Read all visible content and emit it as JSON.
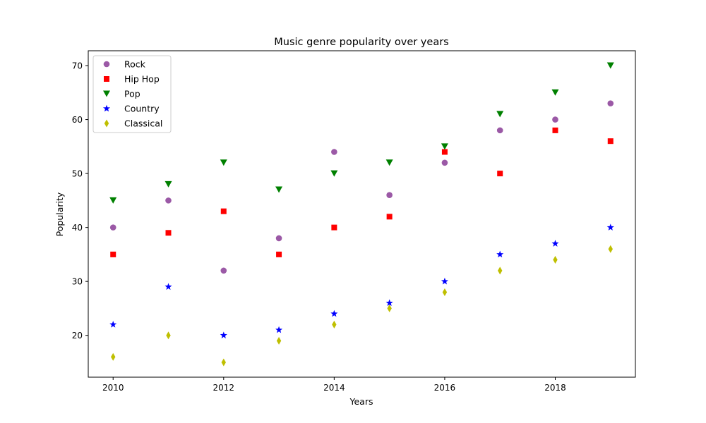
{
  "chart_data": {
    "type": "scatter",
    "title": "Music genre popularity over years",
    "xlabel": "Years",
    "ylabel": "Popularity",
    "x": [
      2010,
      2011,
      2012,
      2013,
      2014,
      2015,
      2016,
      2017,
      2018,
      2019
    ],
    "xlim": [
      2009.55,
      2019.45
    ],
    "ylim": [
      12.25,
      72.75
    ],
    "xticks": [
      2010,
      2012,
      2014,
      2016,
      2018
    ],
    "yticks": [
      20,
      30,
      40,
      50,
      60,
      70
    ],
    "grid": false,
    "legend_position": "top-left",
    "series": [
      {
        "name": "Rock",
        "marker": "circle",
        "color": "#9b59a6",
        "values": [
          40,
          45,
          32,
          38,
          54,
          46,
          52,
          58,
          60,
          63
        ]
      },
      {
        "name": "Hip Hop",
        "marker": "square",
        "color": "#ff0000",
        "values": [
          35,
          39,
          43,
          35,
          40,
          42,
          54,
          50,
          58,
          56
        ]
      },
      {
        "name": "Pop",
        "marker": "triangle-down",
        "color": "#008000",
        "values": [
          45,
          48,
          52,
          47,
          50,
          52,
          55,
          61,
          65,
          70
        ]
      },
      {
        "name": "Country",
        "marker": "star",
        "color": "#0000ff",
        "values": [
          22,
          29,
          20,
          21,
          24,
          26,
          30,
          35,
          37,
          40
        ]
      },
      {
        "name": "Classical",
        "marker": "thin-diamond",
        "color": "#bfbf00",
        "values": [
          16,
          20,
          15,
          19,
          22,
          25,
          28,
          32,
          34,
          36
        ]
      }
    ]
  }
}
